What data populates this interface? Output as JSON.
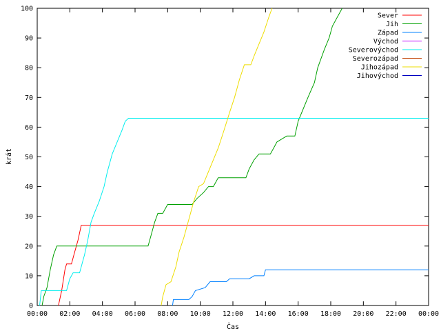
{
  "chart_data": {
    "type": "line",
    "xlabel": "Čas",
    "ylabel": "krát",
    "xlim": [
      0,
      24
    ],
    "ylim": [
      0,
      100
    ],
    "x_unit": "hours",
    "x_ticks": [
      {
        "v": 0,
        "label": "00:00"
      },
      {
        "v": 2,
        "label": "02:00"
      },
      {
        "v": 4,
        "label": "04:00"
      },
      {
        "v": 6,
        "label": "06:00"
      },
      {
        "v": 8,
        "label": "08:00"
      },
      {
        "v": 10,
        "label": "10:00"
      },
      {
        "v": 12,
        "label": "12:00"
      },
      {
        "v": 14,
        "label": "14:00"
      },
      {
        "v": 16,
        "label": "16:00"
      },
      {
        "v": 18,
        "label": "18:00"
      },
      {
        "v": 20,
        "label": "20:00"
      },
      {
        "v": 22,
        "label": "22:00"
      },
      {
        "v": 24,
        "label": "00:00"
      }
    ],
    "y_ticks": [
      0,
      10,
      20,
      30,
      40,
      50,
      60,
      70,
      80,
      90,
      100
    ],
    "grid": false,
    "legend_position": "top-right",
    "series": [
      {
        "name": "Sever",
        "color": "#ff0000",
        "points": [
          [
            1.3,
            0
          ],
          [
            1.5,
            5
          ],
          [
            1.7,
            12
          ],
          [
            1.8,
            14
          ],
          [
            2.1,
            14
          ],
          [
            2.3,
            18
          ],
          [
            2.5,
            22
          ],
          [
            2.7,
            27
          ],
          [
            24,
            27
          ]
        ]
      },
      {
        "name": "Jih",
        "color": "#00a000",
        "points": [
          [
            0.3,
            0
          ],
          [
            0.4,
            3
          ],
          [
            0.6,
            6
          ],
          [
            0.8,
            12
          ],
          [
            1.0,
            17
          ],
          [
            1.2,
            20
          ],
          [
            6.8,
            20
          ],
          [
            7.0,
            24
          ],
          [
            7.2,
            28
          ],
          [
            7.4,
            31
          ],
          [
            7.7,
            31
          ],
          [
            8.0,
            34
          ],
          [
            9.5,
            34
          ],
          [
            9.8,
            36
          ],
          [
            10.2,
            38
          ],
          [
            10.5,
            40
          ],
          [
            10.8,
            40
          ],
          [
            11.1,
            43
          ],
          [
            12.8,
            43
          ],
          [
            13.0,
            46
          ],
          [
            13.3,
            49
          ],
          [
            13.6,
            51
          ],
          [
            14.3,
            51
          ],
          [
            14.5,
            53
          ],
          [
            14.7,
            55
          ],
          [
            15.0,
            56
          ],
          [
            15.3,
            57
          ],
          [
            15.8,
            57
          ],
          [
            16.0,
            62
          ],
          [
            16.3,
            66
          ],
          [
            16.6,
            70
          ],
          [
            17.0,
            75
          ],
          [
            17.2,
            80
          ],
          [
            17.6,
            86
          ],
          [
            17.9,
            90
          ],
          [
            18.1,
            94
          ],
          [
            18.4,
            97
          ],
          [
            18.7,
            100
          ]
        ]
      },
      {
        "name": "Západ",
        "color": "#0080ff",
        "points": [
          [
            8.3,
            0
          ],
          [
            8.35,
            2
          ],
          [
            9.3,
            2
          ],
          [
            9.5,
            3
          ],
          [
            9.7,
            5
          ],
          [
            10.3,
            6
          ],
          [
            10.6,
            8
          ],
          [
            11.6,
            8
          ],
          [
            11.8,
            9
          ],
          [
            13.0,
            9
          ],
          [
            13.3,
            10
          ],
          [
            13.9,
            10
          ],
          [
            14.0,
            12
          ],
          [
            24,
            12
          ]
        ]
      },
      {
        "name": "Východ",
        "color": "#c000ff",
        "points": []
      },
      {
        "name": "Severovýchod",
        "color": "#00eeee",
        "points": [
          [
            0.15,
            0
          ],
          [
            0.25,
            5
          ],
          [
            1.8,
            5
          ],
          [
            2.0,
            9
          ],
          [
            2.2,
            11
          ],
          [
            2.6,
            11
          ],
          [
            2.9,
            17
          ],
          [
            3.1,
            22
          ],
          [
            3.3,
            28
          ],
          [
            3.5,
            31
          ],
          [
            3.8,
            35
          ],
          [
            4.1,
            40
          ],
          [
            4.3,
            45
          ],
          [
            4.6,
            51
          ],
          [
            4.9,
            55
          ],
          [
            5.2,
            59
          ],
          [
            5.4,
            62
          ],
          [
            5.6,
            63
          ],
          [
            24,
            63
          ]
        ]
      },
      {
        "name": "Severozápad",
        "color": "#c04000",
        "points": []
      },
      {
        "name": "Jihozápad",
        "color": "#eedd00",
        "points": [
          [
            7.6,
            0
          ],
          [
            7.7,
            3
          ],
          [
            7.9,
            7
          ],
          [
            8.2,
            8
          ],
          [
            8.5,
            13
          ],
          [
            8.7,
            18
          ],
          [
            9.0,
            23
          ],
          [
            9.3,
            29
          ],
          [
            9.6,
            35
          ],
          [
            9.9,
            40
          ],
          [
            10.2,
            41
          ],
          [
            10.5,
            45
          ],
          [
            10.8,
            49
          ],
          [
            11.1,
            53
          ],
          [
            11.4,
            58
          ],
          [
            11.8,
            65
          ],
          [
            12.1,
            70
          ],
          [
            12.4,
            76
          ],
          [
            12.7,
            81
          ],
          [
            13.1,
            81
          ],
          [
            13.3,
            84
          ],
          [
            13.6,
            88
          ],
          [
            13.9,
            92
          ],
          [
            14.2,
            97
          ],
          [
            14.4,
            100
          ]
        ]
      },
      {
        "name": "Jihovýchod",
        "color": "#0000c0",
        "points": []
      }
    ]
  }
}
